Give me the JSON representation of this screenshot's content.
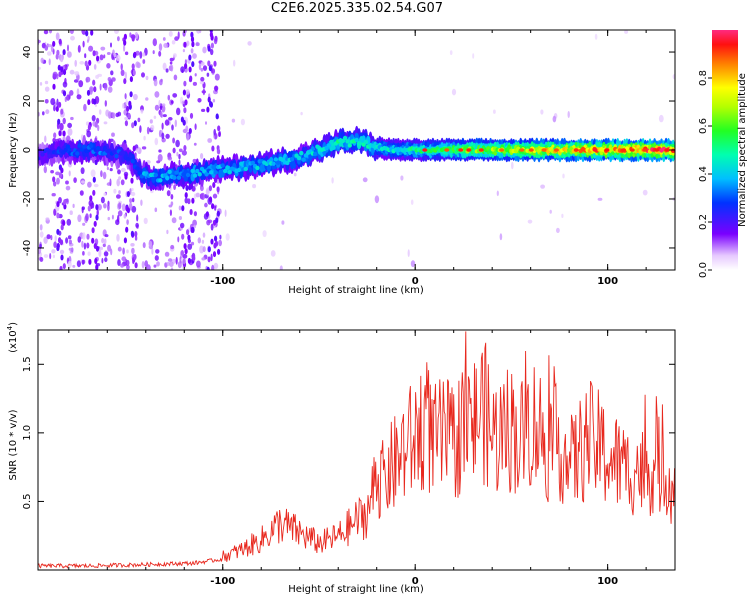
{
  "title": "C2E6.2025.335.02.54.G07",
  "chart_data": [
    {
      "type": "heatmap",
      "name": "spectrogram",
      "title": "C2E6.2025.335.02.54.G07",
      "xlabel": "Height of straight line (km)",
      "ylabel": "Frequency (Hz)",
      "xlim": [
        -196,
        135
      ],
      "ylim": [
        -49,
        49
      ],
      "x_ticks": [
        -100,
        0,
        100
      ],
      "x_tick_labels": [
        "-100",
        "0",
        "100"
      ],
      "y_ticks": [
        -40,
        -20,
        0,
        20,
        40
      ],
      "y_tick_labels": [
        "-40",
        "-20",
        "0",
        "20",
        "40"
      ],
      "ridge": {
        "x": [
          -196,
          -180,
          -165,
          -150,
          -140,
          -120,
          -100,
          -80,
          -60,
          -50,
          -40,
          -30,
          -20,
          -10,
          0,
          20,
          40,
          60,
          80,
          100,
          120,
          135
        ],
        "y": [
          -2,
          0,
          0,
          -2,
          -11,
          -10,
          -8,
          -6,
          -3,
          0,
          3,
          4,
          1,
          0,
          0,
          0,
          0,
          0,
          0,
          0,
          0,
          0
        ],
        "amplitude": [
          0.2,
          0.3,
          0.3,
          0.25,
          0.35,
          0.35,
          0.35,
          0.38,
          0.38,
          0.4,
          0.45,
          0.45,
          0.42,
          0.4,
          0.45,
          0.55,
          0.62,
          0.68,
          0.73,
          0.78,
          0.82,
          0.85
        ]
      },
      "colorbar": {
        "label": "Normalized spectral amplitude",
        "range": [
          0.0,
          1.0
        ],
        "ticks": [
          0.0,
          0.2,
          0.4,
          0.6,
          0.8
        ],
        "tick_labels": [
          "0.0",
          "0.2",
          "0.4",
          "0.6",
          "0.8"
        ]
      }
    },
    {
      "type": "line",
      "name": "snr",
      "xlabel": "Height of straight line (km)",
      "ylabel": "SNR (10 * v/v)",
      "scale_label": "(x10",
      "scale_exponent": "4",
      "xlim": [
        -196,
        135
      ],
      "ylim": [
        0,
        1.75
      ],
      "x_ticks": [
        -100,
        0,
        100
      ],
      "x_tick_labels": [
        "-100",
        "0",
        "100"
      ],
      "y_ticks": [
        0.5,
        1.0,
        1.5
      ],
      "y_tick_labels": [
        "0.5",
        "1.0",
        "1.5"
      ],
      "series": [
        {
          "name": "SNR",
          "color": "#e8281e",
          "x": [
            -196,
            -170,
            -140,
            -115,
            -100,
            -90,
            -80,
            -70,
            -60,
            -50,
            -40,
            -30,
            -25,
            -20,
            -15,
            -10,
            -5,
            0,
            5,
            10,
            15,
            20,
            25,
            30,
            35,
            40,
            45,
            50,
            55,
            60,
            65,
            70,
            75,
            80,
            85,
            90,
            95,
            100,
            105,
            110,
            115,
            120,
            125,
            130,
            135
          ],
          "y": [
            0.03,
            0.03,
            0.04,
            0.05,
            0.08,
            0.12,
            0.18,
            0.28,
            0.22,
            0.16,
            0.2,
            0.3,
            0.34,
            0.55,
            0.7,
            0.78,
            0.9,
            0.95,
            1.1,
            0.92,
            0.98,
            0.9,
            1.08,
            1.05,
            1.2,
            0.98,
            1.0,
            1.05,
            0.95,
            1.1,
            1.02,
            0.88,
            0.95,
            0.75,
            0.85,
            0.95,
            0.9,
            0.82,
            0.78,
            0.72,
            0.75,
            0.7,
            0.78,
            0.72,
            0.58
          ]
        }
      ]
    }
  ],
  "colors": {
    "snr_line": "#e8281e",
    "low_amplitude": "#7a00ff",
    "axes": "#000000"
  }
}
